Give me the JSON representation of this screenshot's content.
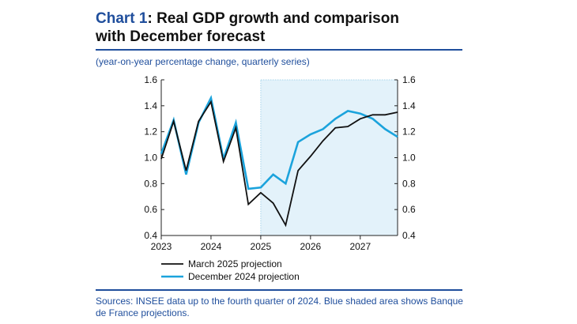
{
  "header": {
    "chart_label": "Chart 1",
    "title_line1": ": Real GDP growth and comparison",
    "title_line2": "with December forecast",
    "subtitle": "(year-on-year percentage change, quarterly series)"
  },
  "footer": {
    "sources": "Sources: INSEE data up to the fourth quarter of 2024. Blue shaded area shows Banque de France projections."
  },
  "colors": {
    "accent": "#1f4e9c",
    "march_line": "#111111",
    "december_line": "#1ba3dc",
    "shade": "#e3f2fa"
  },
  "chart_data": {
    "type": "line",
    "title": "Real GDP growth and comparison with December forecast",
    "ylabel": "year-on-year percentage change, quarterly series",
    "xlim": [
      2023,
      2027.75
    ],
    "ylim": [
      0.4,
      1.6
    ],
    "yticks": [
      0.4,
      0.6,
      0.8,
      1.0,
      1.2,
      1.4,
      1.6
    ],
    "ytick_labels": [
      "0.4",
      "0.6",
      "0.8",
      "1.0",
      "1.2",
      "1.4",
      "1.6"
    ],
    "xticks": [
      2023,
      2024,
      2025,
      2026,
      2027
    ],
    "xtick_labels": [
      "2023",
      "2024",
      "2025",
      "2026",
      "2027"
    ],
    "projection_shade": [
      2025,
      2027.75
    ],
    "x": [
      2023,
      2023.25,
      2023.5,
      2023.75,
      2024,
      2024.25,
      2024.5,
      2024.75,
      2025,
      2025.25,
      2025.5,
      2025.75,
      2026,
      2026.25,
      2026.5,
      2026.75,
      2027,
      2027.25,
      2027.5,
      2027.75
    ],
    "series": [
      {
        "name": "March 2025 projection",
        "color": "#111111",
        "values": [
          0.99,
          1.28,
          0.9,
          1.28,
          1.43,
          0.97,
          1.23,
          0.64,
          0.73,
          0.65,
          0.48,
          0.9,
          1.01,
          1.13,
          1.23,
          1.24,
          1.3,
          1.33,
          1.33,
          1.35
        ]
      },
      {
        "name": "December 2024 projection",
        "color": "#1ba3dc",
        "values": [
          1.03,
          1.29,
          0.87,
          1.27,
          1.46,
          0.99,
          1.27,
          0.76,
          0.77,
          0.87,
          0.8,
          1.12,
          1.18,
          1.22,
          1.3,
          1.36,
          1.34,
          1.3,
          1.22,
          1.16
        ]
      }
    ],
    "legend_position": "bottom-left"
  }
}
